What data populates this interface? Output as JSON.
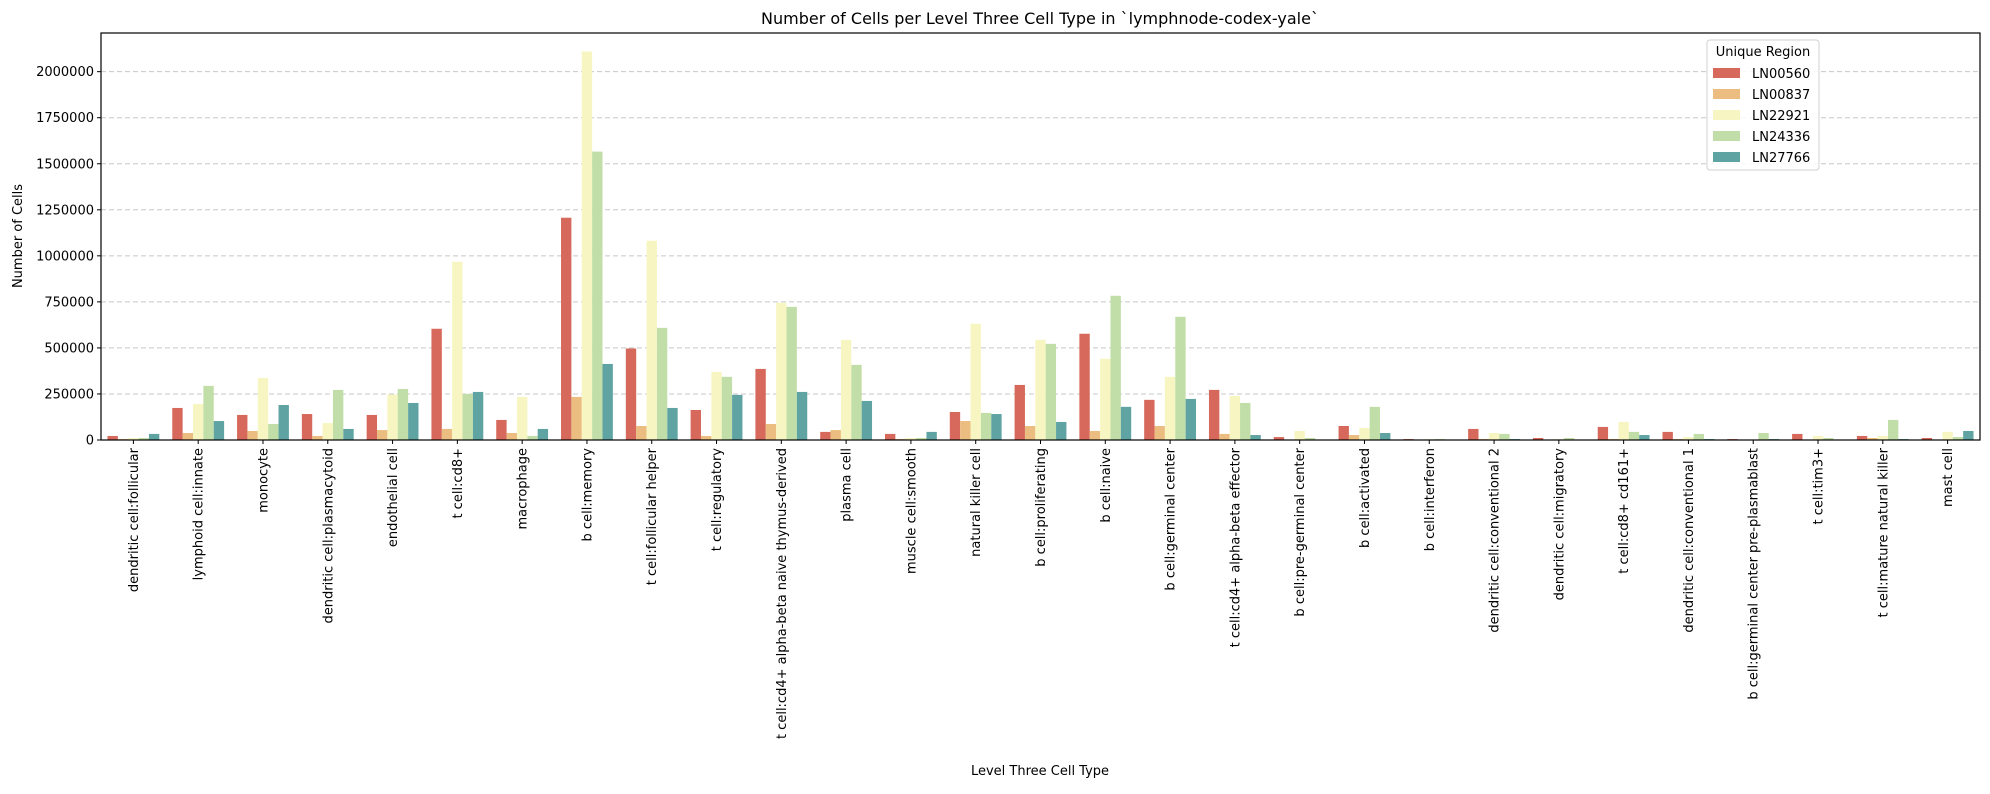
{
  "chart_data": {
    "type": "bar",
    "title": "Number of Cells per Level Three Cell Type in `lymphnode-codex-yale`",
    "xlabel": "Level Three Cell Type",
    "ylabel": "Number of Cells",
    "ylim": [
      0,
      2210000
    ],
    "yticks": [
      0,
      250000,
      500000,
      750000,
      1000000,
      1250000,
      1500000,
      1750000,
      2000000
    ],
    "grid": "y-dashed",
    "legend": {
      "title": "Unique Region",
      "placement": "top-right"
    },
    "categories": [
      "dendritic cell:follicular",
      "lymphoid cell:innate",
      "monocyte",
      "dendritic cell:plasmacytoid",
      "endothelial cell",
      "t cell:cd8+",
      "macrophage",
      "b cell:memory",
      "t cell:follicular helper",
      "t cell:regulatory",
      "t cell:cd4+ alpha-beta naive thymus-derived",
      "plasma cell",
      "muscle cell:smooth",
      "natural killer cell",
      "b cell:proliferating",
      "b cell:naive",
      "b cell:germinal center",
      "t cell:cd4+ alpha-beta effector",
      "b cell:pre-germinal center",
      "b cell:activated",
      "b cell:interferon",
      "dendritic cell:conventional 2",
      "dendritic cell:migratory",
      "t cell:cd8+ cd161+",
      "dendritic cell:conventional 1",
      "b cell:germinal center pre-plasmablast",
      "t cell:tim3+",
      "t cell:mature natural killer",
      "mast cell"
    ],
    "series": [
      {
        "name": "LN00560",
        "color": "#d6695b",
        "values": [
          22000,
          174000,
          136000,
          141000,
          136000,
          604000,
          109000,
          1207000,
          497000,
          163000,
          386000,
          44000,
          33000,
          152000,
          299000,
          577000,
          218000,
          272000,
          16000,
          76000,
          5000,
          60000,
          11000,
          71000,
          44000,
          5000,
          33000,
          22000,
          11000
        ]
      },
      {
        "name": "LN00837",
        "color": "#ecbd80",
        "values": [
          5000,
          38000,
          49000,
          22000,
          54000,
          60000,
          38000,
          234000,
          76000,
          22000,
          87000,
          54000,
          5000,
          103000,
          76000,
          49000,
          76000,
          33000,
          1000,
          27000,
          1000,
          5000,
          1000,
          5000,
          5000,
          1000,
          2000,
          11000,
          2000
        ]
      },
      {
        "name": "LN22921",
        "color": "#f7f6c2",
        "values": [
          11000,
          196000,
          337000,
          92000,
          247000,
          968000,
          234000,
          2110000,
          1082000,
          370000,
          745000,
          544000,
          11000,
          631000,
          544000,
          441000,
          343000,
          239000,
          49000,
          65000,
          4000,
          38000,
          4000,
          98000,
          16000,
          1000,
          22000,
          22000,
          44000
        ]
      },
      {
        "name": "LN24336",
        "color": "#c1dea8",
        "values": [
          11000,
          294000,
          87000,
          272000,
          277000,
          250000,
          22000,
          1566000,
          609000,
          343000,
          723000,
          408000,
          11000,
          147000,
          522000,
          783000,
          669000,
          201000,
          11000,
          180000,
          5000,
          33000,
          11000,
          44000,
          33000,
          38000,
          11000,
          109000,
          16000
        ]
      },
      {
        "name": "LN27766",
        "color": "#5fa4a3",
        "values": [
          33000,
          103000,
          190000,
          60000,
          201000,
          261000,
          60000,
          413000,
          174000,
          245000,
          261000,
          212000,
          44000,
          141000,
          98000,
          180000,
          223000,
          27000,
          1000,
          38000,
          1000,
          5000,
          1000,
          27000,
          5000,
          5000,
          2000,
          5000,
          49000
        ]
      }
    ]
  }
}
